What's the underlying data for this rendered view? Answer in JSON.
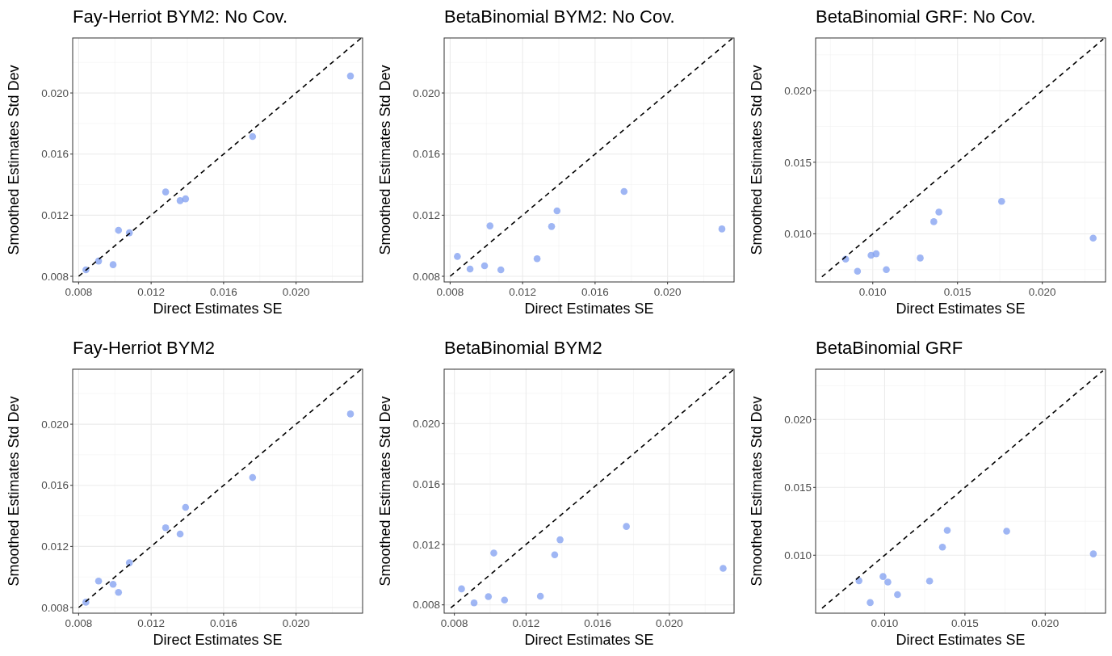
{
  "chart_data": [
    {
      "type": "scatter",
      "title": "Fay-Herriot BYM2: No Cov.",
      "xlabel": "Direct Estimates SE",
      "ylabel": "Smoothed Estimates Std Dev",
      "xlim": [
        0.00767,
        0.02367
      ],
      "ylim": [
        0.00763,
        0.0236
      ],
      "xticks": [
        {
          "value": 0.008,
          "label": "0.008"
        },
        {
          "value": 0.012,
          "label": "0.012"
        },
        {
          "value": 0.016,
          "label": "0.016"
        },
        {
          "value": 0.02,
          "label": "0.020"
        }
      ],
      "yticks": [
        {
          "value": 0.008,
          "label": "0.008"
        },
        {
          "value": 0.012,
          "label": "0.012"
        },
        {
          "value": 0.016,
          "label": "0.016"
        },
        {
          "value": 0.02,
          "label": "0.020"
        }
      ],
      "grid": true,
      "series": [
        {
          "marker": "circle",
          "color": "#7f9ef0",
          "x": [
            0.0084,
            0.0091,
            0.0099,
            0.0102,
            0.0108,
            0.0128,
            0.0136,
            0.0139,
            0.0176,
            0.023
          ],
          "values": [
            0.00842,
            0.009,
            0.00876,
            0.01101,
            0.01085,
            0.01352,
            0.01295,
            0.01307,
            0.01715,
            0.02111
          ]
        },
        {
          "type": "line",
          "marker": "none",
          "color": "#000000",
          "line_style": "dashed",
          "x": [
            0.008,
            0.0236
          ],
          "values": [
            0.008,
            0.0236
          ]
        }
      ]
    },
    {
      "type": "scatter",
      "title": "BetaBinomial BYM2: No Cov.",
      "xlabel": "Direct Estimates SE",
      "ylabel": "Smoothed Estimates Std Dev",
      "xlim": [
        0.00767,
        0.02367
      ],
      "ylim": [
        0.00763,
        0.0236
      ],
      "xticks": [
        {
          "value": 0.008,
          "label": "0.008"
        },
        {
          "value": 0.012,
          "label": "0.012"
        },
        {
          "value": 0.016,
          "label": "0.016"
        },
        {
          "value": 0.02,
          "label": "0.020"
        }
      ],
      "yticks": [
        {
          "value": 0.008,
          "label": "0.008"
        },
        {
          "value": 0.012,
          "label": "0.012"
        },
        {
          "value": 0.016,
          "label": "0.016"
        },
        {
          "value": 0.02,
          "label": "0.020"
        }
      ],
      "grid": true,
      "series": [
        {
          "marker": "circle",
          "color": "#7f9ef0",
          "x": [
            0.0084,
            0.0091,
            0.0099,
            0.0102,
            0.0108,
            0.0128,
            0.0136,
            0.0139,
            0.0176,
            0.023
          ],
          "values": [
            0.0093,
            0.00848,
            0.00869,
            0.0113,
            0.00842,
            0.00915,
            0.01126,
            0.01228,
            0.01355,
            0.0111
          ]
        },
        {
          "type": "line",
          "marker": "none",
          "color": "#000000",
          "line_style": "dashed",
          "x": [
            0.008,
            0.0236
          ],
          "values": [
            0.008,
            0.0236
          ]
        }
      ]
    },
    {
      "type": "scatter",
      "title": "BetaBinomial GRF: No Cov.",
      "xlabel": "Direct Estimates SE",
      "ylabel": "Smoothed Estimates Std Dev",
      "xlim": [
        0.00663,
        0.02373
      ],
      "ylim": [
        0.00664,
        0.02368
      ],
      "xticks": [
        {
          "value": 0.01,
          "label": "0.010"
        },
        {
          "value": 0.015,
          "label": "0.015"
        },
        {
          "value": 0.02,
          "label": "0.020"
        }
      ],
      "yticks": [
        {
          "value": 0.01,
          "label": "0.010"
        },
        {
          "value": 0.015,
          "label": "0.015"
        },
        {
          "value": 0.02,
          "label": "0.020"
        }
      ],
      "grid": true,
      "series": [
        {
          "marker": "circle",
          "color": "#7f9ef0",
          "x": [
            0.0084,
            0.0091,
            0.0099,
            0.0102,
            0.0108,
            0.0128,
            0.0136,
            0.0139,
            0.0176,
            0.023
          ],
          "values": [
            0.00823,
            0.00739,
            0.0085,
            0.00861,
            0.0075,
            0.00831,
            0.01085,
            0.01152,
            0.01227,
            0.0097
          ]
        },
        {
          "type": "line",
          "marker": "none",
          "color": "#000000",
          "line_style": "dashed",
          "x": [
            0.007,
            0.0236
          ],
          "values": [
            0.007,
            0.0236
          ]
        }
      ]
    },
    {
      "type": "scatter",
      "title": "Fay-Herriot BYM2",
      "xlabel": "Direct Estimates SE",
      "ylabel": "Smoothed Estimates Std Dev",
      "xlim": [
        0.00767,
        0.02367
      ],
      "ylim": [
        0.00763,
        0.0236
      ],
      "xticks": [
        {
          "value": 0.008,
          "label": "0.008"
        },
        {
          "value": 0.012,
          "label": "0.012"
        },
        {
          "value": 0.016,
          "label": "0.016"
        },
        {
          "value": 0.02,
          "label": "0.020"
        }
      ],
      "yticks": [
        {
          "value": 0.008,
          "label": "0.008"
        },
        {
          "value": 0.012,
          "label": "0.012"
        },
        {
          "value": 0.016,
          "label": "0.016"
        },
        {
          "value": 0.02,
          "label": "0.020"
        }
      ],
      "grid": true,
      "series": [
        {
          "marker": "circle",
          "color": "#7f9ef0",
          "x": [
            0.0084,
            0.0091,
            0.0099,
            0.0102,
            0.0108,
            0.0128,
            0.0136,
            0.0139,
            0.0176,
            0.023
          ],
          "values": [
            0.00835,
            0.00973,
            0.00952,
            0.00899,
            0.01093,
            0.01322,
            0.01281,
            0.01456,
            0.01651,
            0.02067
          ]
        },
        {
          "type": "line",
          "marker": "none",
          "color": "#000000",
          "line_style": "dashed",
          "x": [
            0.008,
            0.0236
          ],
          "values": [
            0.008,
            0.0236
          ]
        }
      ]
    },
    {
      "type": "scatter",
      "title": "BetaBinomial BYM2",
      "xlabel": "Direct Estimates SE",
      "ylabel": "Smoothed Estimates Std Dev",
      "xlim": [
        0.00743,
        0.02361
      ],
      "ylim": [
        0.00745,
        0.0236
      ],
      "xticks": [
        {
          "value": 0.008,
          "label": "0.008"
        },
        {
          "value": 0.012,
          "label": "0.012"
        },
        {
          "value": 0.016,
          "label": "0.016"
        },
        {
          "value": 0.02,
          "label": "0.020"
        }
      ],
      "yticks": [
        {
          "value": 0.008,
          "label": "0.008"
        },
        {
          "value": 0.012,
          "label": "0.012"
        },
        {
          "value": 0.016,
          "label": "0.016"
        },
        {
          "value": 0.02,
          "label": "0.020"
        }
      ],
      "grid": true,
      "series": [
        {
          "marker": "circle",
          "color": "#7f9ef0",
          "x": [
            0.0084,
            0.0091,
            0.0099,
            0.0102,
            0.0108,
            0.0128,
            0.0136,
            0.0139,
            0.0176,
            0.023
          ],
          "values": [
            0.00906,
            0.00813,
            0.00855,
            0.01143,
            0.00832,
            0.00857,
            0.01131,
            0.01231,
            0.01319,
            0.01042
          ]
        },
        {
          "type": "line",
          "marker": "none",
          "color": "#000000",
          "line_style": "dashed",
          "x": [
            0.0078,
            0.0236
          ],
          "values": [
            0.0078,
            0.0236
          ]
        }
      ]
    },
    {
      "type": "scatter",
      "title": "BetaBinomial GRF",
      "xlabel": "Direct Estimates SE",
      "ylabel": "Smoothed Estimates Std Dev",
      "xlim": [
        0.0057,
        0.02376
      ],
      "ylim": [
        0.00573,
        0.02371
      ],
      "xticks": [
        {
          "value": 0.01,
          "label": "0.010"
        },
        {
          "value": 0.015,
          "label": "0.015"
        },
        {
          "value": 0.02,
          "label": "0.020"
        }
      ],
      "yticks": [
        {
          "value": 0.01,
          "label": "0.010"
        },
        {
          "value": 0.015,
          "label": "0.015"
        },
        {
          "value": 0.02,
          "label": "0.020"
        }
      ],
      "grid": true,
      "series": [
        {
          "marker": "circle",
          "color": "#7f9ef0",
          "x": [
            0.0084,
            0.0091,
            0.0099,
            0.0102,
            0.0108,
            0.0128,
            0.0136,
            0.0139,
            0.0176,
            0.023
          ],
          "values": [
            0.00812,
            0.00651,
            0.00843,
            0.00802,
            0.0071,
            0.0081,
            0.0106,
            0.01183,
            0.01177,
            0.0101
          ]
        },
        {
          "type": "line",
          "marker": "none",
          "color": "#000000",
          "line_style": "dashed",
          "x": [
            0.0061,
            0.0236
          ],
          "values": [
            0.0061,
            0.0236
          ]
        }
      ]
    }
  ]
}
